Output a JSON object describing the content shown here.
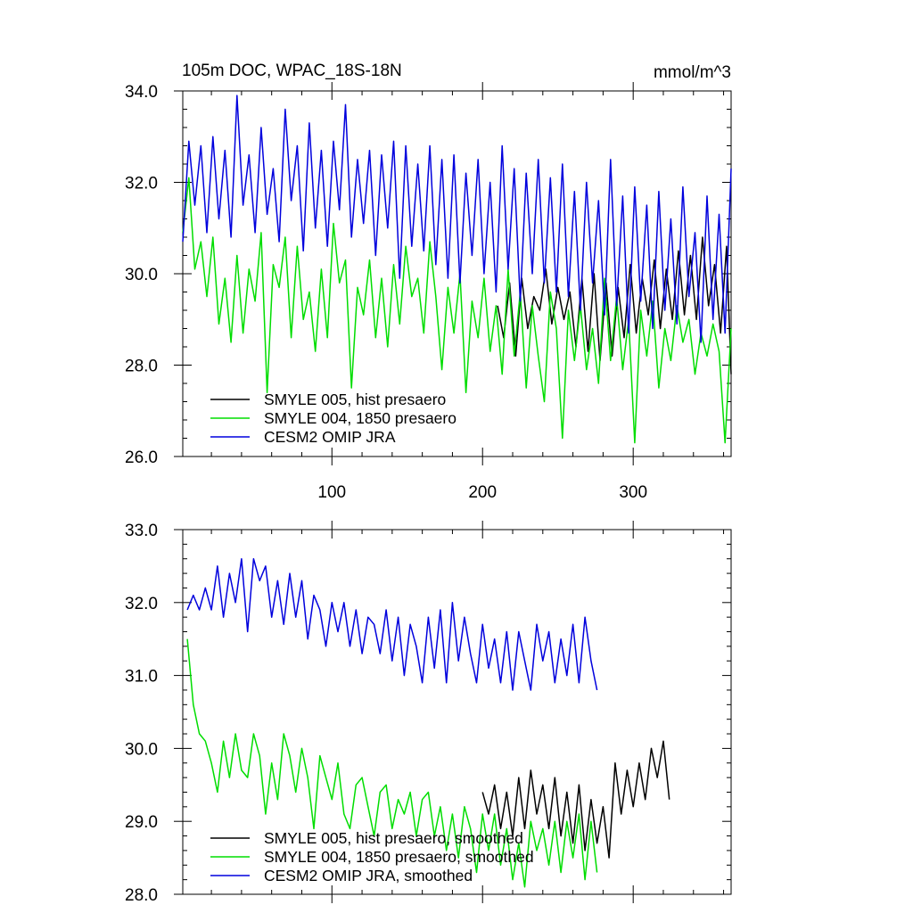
{
  "figure": {
    "title": "105m DOC, WPAC_18S-18N",
    "units": "mmol/m^3"
  },
  "colors": {
    "hist": "#000000",
    "pre1850": "#00dd00",
    "omip": "#0000dd"
  },
  "chart_data": [
    {
      "type": "line",
      "panel": "top",
      "xlim": [
        1,
        365
      ],
      "ylim": [
        26.0,
        34.0
      ],
      "x_tick_labels": [
        "100",
        "200",
        "300"
      ],
      "y_tick_labels": [
        "26.0",
        "28.0",
        "30.0",
        "32.0",
        "34.0"
      ],
      "grid": false,
      "legend_position": "bottom-left",
      "series": [
        {
          "name": "SMYLE 005, hist presaero",
          "color": "#000000",
          "x_start": 210,
          "x_step": 4,
          "values": [
            29.3,
            28.6,
            29.8,
            28.2,
            29.9,
            28.8,
            29.5,
            29.2,
            30.1,
            28.9,
            29.7,
            29.0,
            29.6,
            28.4,
            29.9,
            28.3,
            30.0,
            28.1,
            29.8,
            28.2,
            29.7,
            28.6,
            30.2,
            28.7,
            29.9,
            29.1,
            30.3,
            28.8,
            30.1,
            29.0,
            30.5,
            29.1,
            30.4,
            29.0,
            30.8,
            29.3,
            30.2,
            28.7,
            30.6,
            27.8
          ]
        },
        {
          "name": "SMYLE 004, 1850 presaero",
          "color": "#00dd00",
          "x_start": 1,
          "x_step": 4,
          "values": [
            30.9,
            32.1,
            30.1,
            30.7,
            29.5,
            30.8,
            28.9,
            29.9,
            28.5,
            30.4,
            28.7,
            30.1,
            29.4,
            30.9,
            27.4,
            30.2,
            29.7,
            30.8,
            28.6,
            30.6,
            29.0,
            29.6,
            28.3,
            30.1,
            28.6,
            31.1,
            29.8,
            30.3,
            27.5,
            29.7,
            29.1,
            30.3,
            28.6,
            29.9,
            28.4,
            30.2,
            28.9,
            30.6,
            29.5,
            29.9,
            28.7,
            30.7,
            29.5,
            27.9,
            29.7,
            28.7,
            30.0,
            27.4,
            29.4,
            28.6,
            29.9,
            28.3,
            29.3,
            27.8,
            30.1,
            28.2,
            29.6,
            27.5,
            29.3,
            28.2,
            27.2,
            29.6,
            28.8,
            26.4,
            29.2,
            28.1,
            29.3,
            27.9,
            28.8,
            27.6,
            29.9,
            28.1,
            29.5,
            27.9,
            29.0,
            26.3,
            29.2,
            28.2,
            29.4,
            27.5,
            28.8,
            28.1,
            29.3,
            28.5,
            29.0,
            27.8,
            28.7,
            28.2,
            28.9,
            28.3,
            26.3,
            28.8
          ]
        },
        {
          "name": "CESM2 OMIP JRA",
          "color": "#0000dd",
          "x_start": 1,
          "x_step": 4,
          "values": [
            30.7,
            32.9,
            31.5,
            32.8,
            30.9,
            33.0,
            31.2,
            32.7,
            30.8,
            33.9,
            31.5,
            32.6,
            30.9,
            33.2,
            31.3,
            32.3,
            30.7,
            33.6,
            31.6,
            32.8,
            30.5,
            33.3,
            31.0,
            32.7,
            30.6,
            32.9,
            31.4,
            33.7,
            30.8,
            32.5,
            31.1,
            32.7,
            30.4,
            32.6,
            31.0,
            32.9,
            29.9,
            32.8,
            30.6,
            32.4,
            30.5,
            32.8,
            30.2,
            32.5,
            29.9,
            32.6,
            29.8,
            32.2,
            30.4,
            32.5,
            30.0,
            32.0,
            29.6,
            32.8,
            30.1,
            32.3,
            29.4,
            32.2,
            30.0,
            32.5,
            29.8,
            32.1,
            29.6,
            32.4,
            29.5,
            31.8,
            29.2,
            32.0,
            29.8,
            31.6,
            29.1,
            32.5,
            29.3,
            31.7,
            28.7,
            31.9,
            29.4,
            31.5,
            28.8,
            31.8,
            29.2,
            31.2,
            28.9,
            31.9,
            29.5,
            30.9,
            28.5,
            31.7,
            29.0,
            31.3,
            28.7,
            32.3
          ]
        }
      ]
    },
    {
      "type": "line",
      "panel": "bottom",
      "xlim": [
        1,
        365
      ],
      "ylim": [
        28.0,
        33.0
      ],
      "x_tick_labels": [],
      "y_tick_labels": [
        "28.0",
        "29.0",
        "30.0",
        "31.0",
        "32.0",
        "33.0"
      ],
      "grid": false,
      "legend_position": "bottom-left",
      "series": [
        {
          "name": "SMYLE 005, hist presaero, smoothed",
          "color": "#000000",
          "x_start": 200,
          "x_step": 4,
          "values": [
            29.4,
            29.1,
            29.5,
            28.9,
            29.4,
            28.8,
            29.6,
            28.9,
            29.7,
            29.1,
            29.5,
            28.9,
            29.6,
            28.8,
            29.4,
            28.7,
            29.5,
            28.6,
            29.3,
            28.7,
            29.2,
            28.5,
            29.8,
            29.1,
            29.7,
            29.2,
            29.8,
            29.3,
            30.0,
            29.6,
            30.1,
            29.3
          ]
        },
        {
          "name": "SMYLE 004, 1850 presaero, smoothed",
          "color": "#00dd00",
          "x_start": 4,
          "x_step": 4,
          "values": [
            31.5,
            30.6,
            30.2,
            30.1,
            29.8,
            29.4,
            30.1,
            29.6,
            30.2,
            29.7,
            29.6,
            30.2,
            29.9,
            29.1,
            29.8,
            29.3,
            30.2,
            29.9,
            29.4,
            30.0,
            29.6,
            28.9,
            29.9,
            29.6,
            29.3,
            29.8,
            29.1,
            28.9,
            29.5,
            29.6,
            29.2,
            28.8,
            29.4,
            29.5,
            28.9,
            29.3,
            29.1,
            29.4,
            28.8,
            29.3,
            29.4,
            28.8,
            29.2,
            28.6,
            29.1,
            28.5,
            29.2,
            28.9,
            28.3,
            29.1,
            28.6,
            29.1,
            28.4,
            28.9,
            28.2,
            28.7,
            28.1,
            29.0,
            28.6,
            28.9,
            28.4,
            29.0,
            28.3,
            29.0,
            28.5,
            29.1,
            28.2,
            29.0,
            28.3
          ]
        },
        {
          "name": "CESM2 OMIP JRA, smoothed",
          "color": "#0000dd",
          "x_start": 4,
          "x_step": 4,
          "values": [
            31.9,
            32.1,
            31.9,
            32.2,
            31.9,
            32.5,
            31.8,
            32.4,
            32.0,
            32.6,
            31.6,
            32.6,
            32.3,
            32.5,
            31.8,
            32.3,
            31.7,
            32.4,
            31.8,
            32.3,
            31.5,
            32.1,
            31.9,
            31.4,
            32.0,
            31.6,
            32.0,
            31.4,
            31.9,
            31.3,
            31.8,
            31.7,
            31.3,
            31.9,
            31.2,
            31.8,
            31.0,
            31.7,
            31.4,
            30.9,
            31.8,
            31.1,
            31.9,
            30.9,
            32.0,
            31.2,
            31.8,
            31.3,
            30.9,
            31.7,
            31.1,
            31.5,
            30.9,
            31.6,
            30.8,
            31.6,
            31.2,
            30.8,
            31.7,
            31.2,
            31.6,
            30.9,
            31.5,
            31.0,
            31.7,
            30.9,
            31.8,
            31.2,
            30.8
          ]
        }
      ]
    }
  ]
}
